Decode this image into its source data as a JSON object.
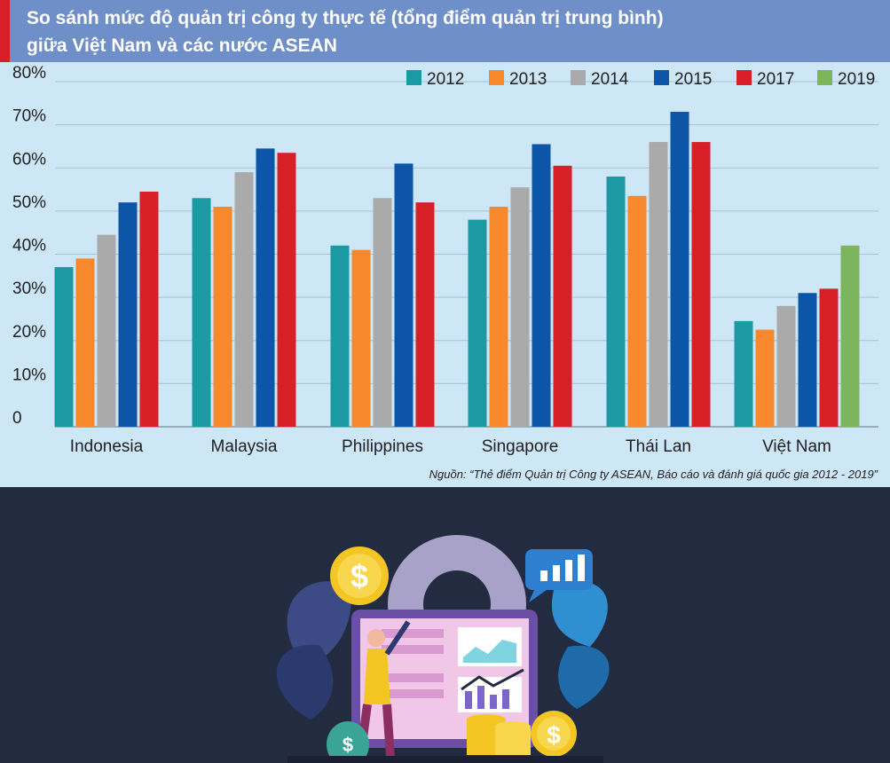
{
  "title_lines": [
    "So sánh mức độ quản trị công ty thực tế (tổng điểm quản trị trung bình)",
    "giữa Việt Nam và các nước ASEAN"
  ],
  "source": "Nguồn: “Thẻ điểm Quản trị Công ty ASEAN, Báo cáo và đánh giá quốc gia 2012 - 2019”",
  "colors": {
    "title_band": "#6f8fc8",
    "accent": "#d71f28",
    "chart_bg": "#cde7f7",
    "page_bg": "#222b40"
  },
  "chart_data": {
    "type": "bar",
    "categories": [
      "Indonesia",
      "Malaysia",
      "Philippines",
      "Singapore",
      "Thái Lan",
      "Việt Nam"
    ],
    "series": [
      {
        "name": "2012",
        "color": "#1b9aa4",
        "values": [
          37,
          53,
          42,
          48,
          58,
          24.5
        ]
      },
      {
        "name": "2013",
        "color": "#f7882b",
        "values": [
          39,
          51,
          41,
          51,
          53.5,
          22.5
        ]
      },
      {
        "name": "2014",
        "color": "#aaaaaa",
        "values": [
          44.5,
          59,
          53,
          55.5,
          66,
          28
        ]
      },
      {
        "name": "2015",
        "color": "#0d55a6",
        "values": [
          52,
          64.5,
          61,
          65.5,
          73,
          31
        ]
      },
      {
        "name": "2017",
        "color": "#d71f28",
        "values": [
          54.5,
          63.5,
          52,
          60.5,
          66,
          32
        ]
      },
      {
        "name": "2019",
        "color": "#7cb55c",
        "values": [
          null,
          null,
          null,
          null,
          null,
          42
        ]
      }
    ],
    "ylim": [
      0,
      80
    ],
    "yticks": [
      0,
      10,
      20,
      30,
      40,
      50,
      60,
      70,
      80
    ],
    "ytick_labels": [
      "0",
      "10%",
      "20%",
      "30%",
      "40%",
      "50%",
      "60%",
      "70%",
      "80%"
    ],
    "grid": true,
    "legend": "top-right"
  }
}
